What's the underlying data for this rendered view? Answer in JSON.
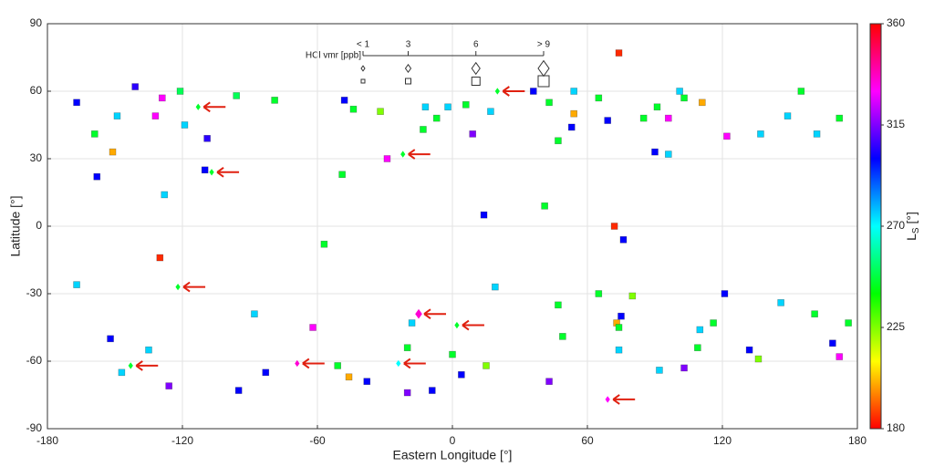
{
  "chart_data": {
    "type": "scatter",
    "xlabel": "Eastern Longitude [°]",
    "ylabel": "Latitude [°]",
    "xlim": [
      -180,
      180
    ],
    "ylim": [
      -90,
      90
    ],
    "xticks": [
      -180,
      -120,
      -60,
      0,
      60,
      120,
      180
    ],
    "yticks": [
      -90,
      -60,
      -30,
      0,
      30,
      60,
      90
    ],
    "grid": true,
    "colorbar": {
      "label": "L",
      "label_sub": "S",
      "label_unit": "[°]",
      "lim": [
        180,
        360
      ],
      "ticks": [
        180,
        225,
        270,
        315,
        360
      ],
      "colormap": "hsv"
    },
    "size_legend": {
      "title": "HCl vmr [ppb]",
      "lim": [
        1,
        9
      ],
      "ticks": [
        {
          "value": 1,
          "label": "< 1"
        },
        3,
        6,
        {
          "value": 9,
          "label": "> 9"
        }
      ]
    },
    "series": [
      {
        "marker": "diamond",
        "arrow": true,
        "x": [
          -113,
          20,
          -22,
          -107,
          -122,
          -15,
          2,
          -143,
          -69,
          -24,
          69
        ],
        "y": [
          53,
          60,
          32,
          24,
          -27,
          -39,
          -44,
          -62,
          -61,
          -61,
          -77
        ],
        "c": [
          245,
          245,
          245,
          245,
          245,
          335,
          245,
          245,
          335,
          270,
          330
        ],
        "size": [
          2,
          2,
          2,
          2,
          2,
          5,
          2,
          2,
          2,
          2,
          2
        ]
      },
      {
        "marker": "square",
        "arrow": false,
        "x": [
          -167,
          -141,
          -129,
          -121,
          -96,
          -79,
          -48,
          -44,
          -32,
          -132,
          -149,
          -159,
          -151,
          -158,
          -128,
          -119,
          -109,
          -110,
          -130,
          -49,
          -29,
          -13,
          -7,
          -12,
          -2,
          6,
          17,
          9,
          36,
          43,
          54,
          54,
          53,
          47,
          65,
          69,
          74,
          85,
          91,
          96,
          90,
          96,
          101,
          103,
          111,
          122,
          137,
          149,
          162,
          172,
          155,
          41,
          14,
          72,
          76,
          19,
          -88,
          -62,
          -57,
          -135,
          -152,
          -147,
          -83,
          -51,
          -46,
          -20,
          -18,
          0,
          15,
          4,
          -9,
          -20,
          43,
          49,
          47,
          73,
          74,
          74,
          75,
          65,
          80,
          92,
          103,
          110,
          109,
          116,
          121,
          136,
          132,
          146,
          161,
          169,
          172,
          176,
          -167,
          -126,
          -95,
          -38
        ],
        "y": [
          55,
          62,
          57,
          60,
          58,
          56,
          56,
          52,
          51,
          49,
          49,
          41,
          33,
          22,
          14,
          45,
          39,
          25,
          -14,
          23,
          30,
          43,
          48,
          53,
          53,
          54,
          51,
          41,
          60,
          55,
          60,
          50,
          44,
          38,
          57,
          47,
          77,
          48,
          53,
          48,
          33,
          32,
          60,
          57,
          55,
          40,
          41,
          49,
          41,
          48,
          60,
          9,
          5,
          0,
          -6,
          -27,
          -39,
          -45,
          -8,
          -55,
          -50,
          -65,
          -65,
          -62,
          -67,
          -54,
          -43,
          -57,
          -62,
          -66,
          -73,
          -74,
          -69,
          -49,
          -35,
          -43,
          -45,
          -55,
          -40,
          -30,
          -31,
          -64,
          -63,
          -46,
          -54,
          -43,
          -30,
          -59,
          -55,
          -34,
          -39,
          -52,
          -58,
          -43,
          -26,
          -71,
          -73,
          -69
        ],
        "c": [
          300,
          305,
          330,
          250,
          250,
          245,
          300,
          245,
          225,
          330,
          275,
          245,
          200,
          300,
          275,
          275,
          305,
          300,
          185,
          245,
          330,
          245,
          245,
          275,
          275,
          245,
          275,
          315,
          300,
          245,
          275,
          200,
          300,
          245,
          245,
          300,
          185,
          245,
          245,
          330,
          300,
          275,
          275,
          245,
          200,
          330,
          275,
          275,
          275,
          245,
          245,
          245,
          300,
          185,
          300,
          275,
          275,
          330,
          245,
          275,
          300,
          275,
          300,
          245,
          200,
          245,
          275,
          245,
          225,
          300,
          300,
          315,
          315,
          245,
          245,
          200,
          245,
          275,
          300,
          245,
          225,
          275,
          315,
          275,
          245,
          245,
          300,
          225,
          300,
          275,
          245,
          300,
          330,
          245,
          275,
          315,
          300,
          300
        ]
      }
    ]
  }
}
